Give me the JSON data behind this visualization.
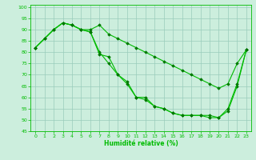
{
  "xlabel": "Humidité relative (%)",
  "background_color": "#cceedd",
  "grid_color": "#99ccbb",
  "line_color": "#00bb00",
  "marker_color": "#007700",
  "xlim": [
    -0.5,
    23.5
  ],
  "ylim": [
    45,
    101
  ],
  "yticks": [
    45,
    50,
    55,
    60,
    65,
    70,
    75,
    80,
    85,
    90,
    95,
    100
  ],
  "xticks": [
    0,
    1,
    2,
    3,
    4,
    5,
    6,
    7,
    8,
    9,
    10,
    11,
    12,
    13,
    14,
    15,
    16,
    17,
    18,
    19,
    20,
    21,
    22,
    23
  ],
  "series": [
    {
      "x": [
        0,
        1,
        2,
        3,
        4,
        5,
        6,
        7,
        8,
        9,
        10,
        11,
        12,
        13,
        14,
        15,
        16,
        17,
        18,
        19,
        20,
        21,
        22,
        23
      ],
      "y": [
        82,
        86,
        90,
        93,
        92,
        90,
        90,
        92,
        88,
        86,
        84,
        82,
        80,
        78,
        76,
        74,
        72,
        70,
        68,
        66,
        64,
        66,
        75,
        81
      ]
    },
    {
      "x": [
        0,
        1,
        2,
        3,
        4,
        5,
        6,
        7,
        8,
        9,
        10,
        11,
        12,
        13,
        14,
        15,
        16,
        17,
        18,
        19,
        20,
        21,
        22,
        23
      ],
      "y": [
        82,
        86,
        90,
        93,
        92,
        90,
        89,
        80,
        75,
        70,
        67,
        60,
        59,
        56,
        55,
        53,
        52,
        52,
        52,
        52,
        51,
        54,
        65,
        81
      ]
    },
    {
      "x": [
        0,
        1,
        2,
        3,
        4,
        5,
        6,
        7,
        8,
        9,
        10,
        11,
        12,
        13,
        14,
        15,
        16,
        17,
        18,
        19,
        20,
        21,
        22,
        23
      ],
      "y": [
        82,
        86,
        90,
        93,
        92,
        90,
        89,
        79,
        78,
        70,
        66,
        60,
        60,
        56,
        55,
        53,
        52,
        52,
        52,
        51,
        51,
        55,
        66,
        81
      ]
    }
  ]
}
